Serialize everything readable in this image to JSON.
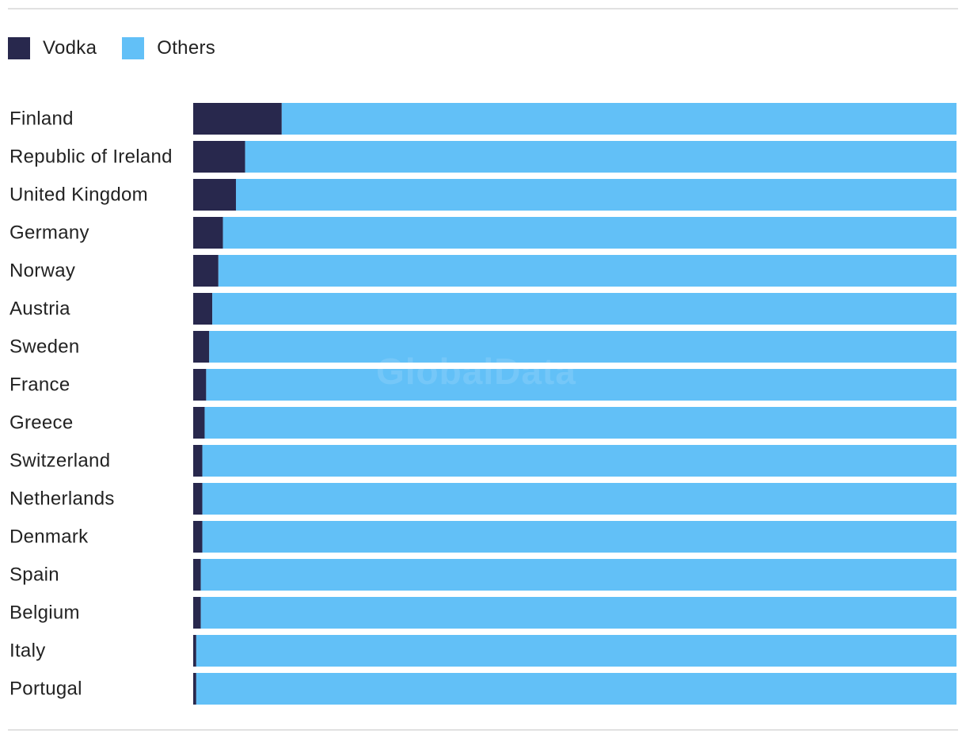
{
  "legend": {
    "vodka_label": "Vodka",
    "others_label": "Others"
  },
  "watermark": "GlobalData",
  "colors": {
    "vodka": "#28284d",
    "others": "#62c0f7"
  },
  "chart_data": {
    "type": "bar",
    "orientation": "horizontal",
    "stacked": true,
    "percent_stacked": true,
    "categories": [
      "Finland",
      "Republic of Ireland",
      "United Kingdom",
      "Germany",
      "Norway",
      "Austria",
      "Sweden",
      "France",
      "Greece",
      "Switzerland",
      "Netherlands",
      "Denmark",
      "Spain",
      "Belgium",
      "Italy",
      "Portugal"
    ],
    "series": [
      {
        "name": "Vodka",
        "values": [
          11.6,
          6.8,
          5.6,
          3.9,
          3.3,
          2.5,
          2.1,
          1.7,
          1.5,
          1.2,
          1.2,
          1.2,
          1.0,
          1.0,
          0.4,
          0.4
        ]
      },
      {
        "name": "Others",
        "values": [
          88.4,
          93.2,
          94.4,
          96.1,
          96.7,
          97.5,
          97.9,
          98.3,
          98.5,
          98.8,
          98.8,
          98.8,
          99.0,
          99.0,
          99.6,
          99.6
        ]
      }
    ],
    "xlim": [
      0,
      100
    ],
    "grid": false,
    "legend_position": "top-left",
    "title": "",
    "xlabel": "",
    "ylabel": ""
  }
}
